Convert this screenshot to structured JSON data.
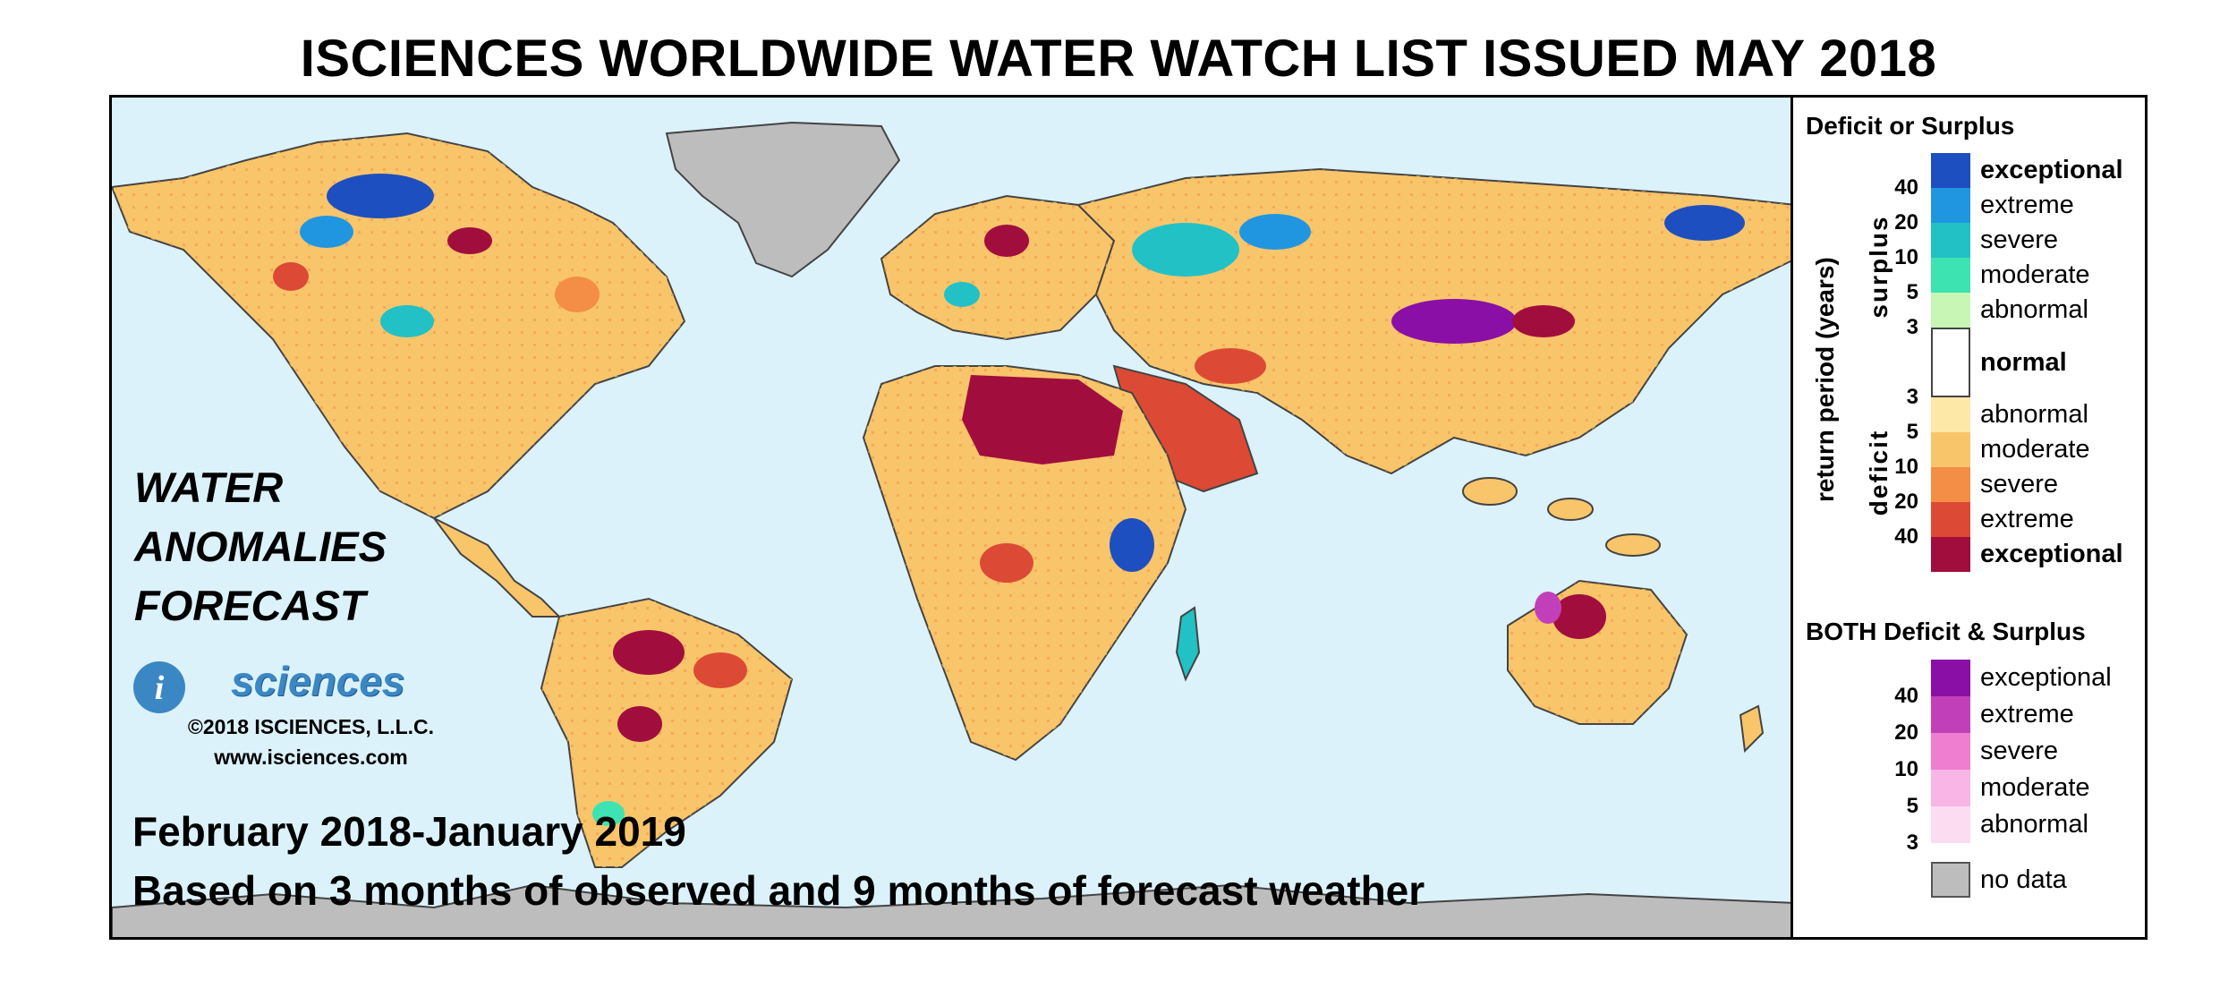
{
  "title": "ISCIENCES WORLDWIDE WATER WATCH LIST ISSUED MAY 2018",
  "map": {
    "ocean_color": "#dbf2fb",
    "overlay": {
      "line1": "WATER",
      "line2": "ANOMALIES",
      "line3": "FORECAST"
    },
    "logo": {
      "letter": "i",
      "text": "sciences"
    },
    "copyright": "©2018 ISCIENCES, L.L.C.",
    "website": "www.isciences.com",
    "period": "February 2018-January 2019",
    "basis": "Based on 3 months of observed and 9 months of forecast weather"
  },
  "legend": {
    "heading": "Deficit or Surplus",
    "axis_label": "return period (years)",
    "surplus_label": "surplus",
    "deficit_label": "deficit",
    "surplus": [
      {
        "label": "exceptional",
        "color": "#1e4fc0",
        "bold": true
      },
      {
        "label": "extreme",
        "color": "#2196e0",
        "bold": false
      },
      {
        "label": "severe",
        "color": "#22c1c6",
        "bold": false
      },
      {
        "label": "moderate",
        "color": "#3de3b0",
        "bold": false
      },
      {
        "label": "abnormal",
        "color": "#c8f7b5",
        "bold": false
      }
    ],
    "normal": {
      "label": "normal",
      "color": "#ffffff"
    },
    "deficit": [
      {
        "label": "abnormal",
        "color": "#fde8a8",
        "bold": false
      },
      {
        "label": "moderate",
        "color": "#f9c56a",
        "bold": false
      },
      {
        "label": "severe",
        "color": "#f48d45",
        "bold": false
      },
      {
        "label": "extreme",
        "color": "#dc4a35",
        "bold": false
      },
      {
        "label": "exceptional",
        "color": "#a10e3e",
        "bold": true
      }
    ],
    "surplus_ticks": [
      "40",
      "20",
      "10",
      "5",
      "3"
    ],
    "deficit_ticks": [
      "3",
      "5",
      "10",
      "20",
      "40"
    ],
    "both_heading": "BOTH Deficit & Surplus",
    "both": [
      {
        "label": "exceptional",
        "color": "#8a0fa6"
      },
      {
        "label": "extreme",
        "color": "#c23fba"
      },
      {
        "label": "severe",
        "color": "#f07ed0"
      },
      {
        "label": "moderate",
        "color": "#f8b5e6"
      },
      {
        "label": "abnormal",
        "color": "#fcdcf0"
      }
    ],
    "both_ticks": [
      "40",
      "20",
      "10",
      "5",
      "3"
    ],
    "nodata": {
      "label": "no data",
      "color": "#bdbdbd"
    }
  }
}
